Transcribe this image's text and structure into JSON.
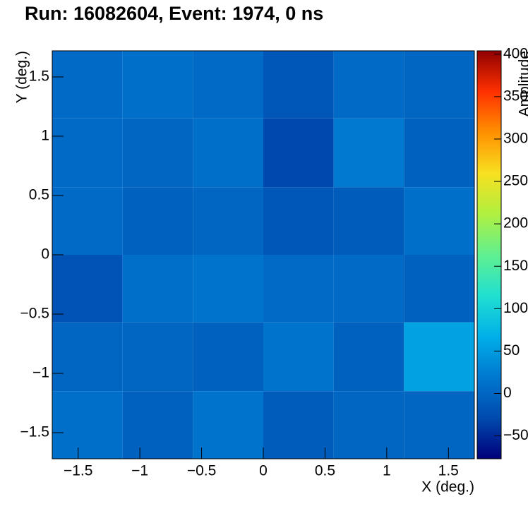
{
  "chart_data": {
    "type": "heatmap",
    "title": "Run: 16082604, Event: 1974, 0 ns",
    "x_label": "X (deg.)",
    "y_label": "Y (deg.)",
    "z_label": "Amplitude",
    "xbins": [
      -1.71,
      -1.14,
      -0.57,
      0,
      0.57,
      1.14,
      1.71
    ],
    "ybins": [
      1.72,
      1.15,
      0.57,
      0,
      -0.57,
      -1.15,
      -1.72
    ],
    "z": [
      [
        5,
        10,
        5,
        -15,
        5,
        0
      ],
      [
        5,
        0,
        10,
        -30,
        20,
        -5
      ],
      [
        5,
        -5,
        0,
        -15,
        -10,
        10
      ],
      [
        -20,
        10,
        15,
        5,
        5,
        -5
      ],
      [
        0,
        0,
        -5,
        15,
        -5,
        55
      ],
      [
        10,
        -5,
        15,
        -10,
        0,
        0
      ]
    ],
    "xlim": [
      -1.71,
      1.71
    ],
    "ylim": [
      -1.72,
      1.72
    ],
    "zlim": [
      -77,
      404
    ],
    "xticks": [
      {
        "value": -1.5,
        "label": "−1.5"
      },
      {
        "value": -1,
        "label": "−1"
      },
      {
        "value": -0.5,
        "label": "−0.5"
      },
      0,
      0.5,
      1,
      1.5
    ],
    "yticks": [
      {
        "value": -1.5,
        "label": "−1.5"
      },
      {
        "value": -1,
        "label": "−1"
      },
      {
        "value": -0.5,
        "label": "−0.5"
      },
      0,
      0.5,
      1,
      1.5
    ],
    "zticks": [
      {
        "value": -50,
        "label": "−50"
      },
      0,
      50,
      100,
      150,
      200,
      250,
      300,
      350,
      400
    ],
    "palette": [
      "#00007a",
      "#004aae",
      "#0078d0",
      "#00b0e8",
      "#20e0d0",
      "#60f090",
      "#b0f040",
      "#f8e020",
      "#ff9000",
      "#ff3000",
      "#900000"
    ]
  }
}
